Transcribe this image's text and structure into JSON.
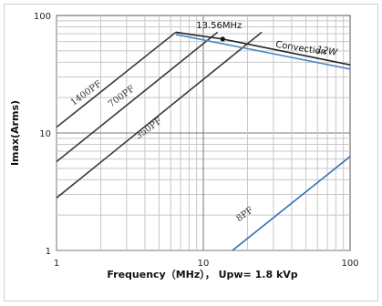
{
  "chart_data": {
    "type": "line",
    "xscale": "log",
    "yscale": "log",
    "xlim": [
      1,
      100
    ],
    "ylim": [
      1,
      100
    ],
    "x_ticks": [
      "1",
      "10",
      "100"
    ],
    "y_ticks": [
      "1",
      "10",
      "100"
    ],
    "xlabel": "Frequency（MHz）， Upw= 1.8 kVp",
    "ylabel": "Imax(Arms)",
    "grid": true,
    "series": [
      {
        "name": "1400PF",
        "color": "#3a3a3a",
        "points": [
          [
            1,
            11.2
          ],
          [
            6.5,
            72
          ]
        ]
      },
      {
        "name": "700PF",
        "color": "#3a3a3a",
        "points": [
          [
            1,
            5.7
          ],
          [
            12.5,
            72
          ]
        ]
      },
      {
        "name": "350PF",
        "color": "#3a3a3a",
        "points": [
          [
            1,
            2.8
          ],
          [
            25,
            72
          ]
        ]
      },
      {
        "name": "8PF",
        "color": "#2e6fb5",
        "points": [
          [
            15.8,
            1
          ],
          [
            100,
            6.3
          ]
        ]
      },
      {
        "name": "Convection 12W",
        "color": "#222222",
        "points": [
          [
            6.5,
            72
          ],
          [
            13.56,
            63
          ],
          [
            100,
            38
          ]
        ]
      },
      {
        "name": "",
        "color": "#4a86c8",
        "points": [
          [
            6.5,
            69
          ],
          [
            100,
            35
          ]
        ]
      }
    ],
    "annotations": [
      {
        "text": "13.56MHz",
        "x": 13.56,
        "y": 63
      },
      {
        "text": "Convection",
        "x": 40,
        "y": 52
      },
      {
        "text": "12W",
        "x": 70,
        "y": 47
      }
    ],
    "series_label_angle": -36
  }
}
